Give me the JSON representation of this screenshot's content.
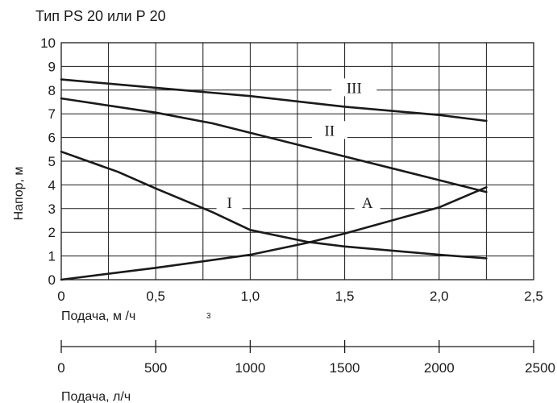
{
  "chart_data": {
    "type": "line",
    "title": "Тип PS 20 или Р 20",
    "ylabel": "Напор, м",
    "xlabel": "Подача, м /ч",
    "xlabel_sup": "3",
    "xlabel2": "Подача, л/ч",
    "xlim": [
      0,
      2.5
    ],
    "ylim": [
      0,
      10
    ],
    "x_ticks": [
      "0",
      "0,5",
      "1,0",
      "1,5",
      "2,0",
      "2,5"
    ],
    "y_ticks": [
      "0",
      "1",
      "2",
      "3",
      "4",
      "5",
      "6",
      "7",
      "8",
      "9",
      "10"
    ],
    "x2_ticks": [
      "0",
      "500",
      "1000",
      "1500",
      "2000",
      "2500"
    ],
    "grid": true,
    "colors": {
      "line": "#1a1a1a",
      "grid": "#1a1a1a"
    },
    "series": [
      {
        "name": "III",
        "label_at": [
          1.55,
          8.05
        ],
        "points": [
          [
            0,
            8.45
          ],
          [
            0.5,
            8.1
          ],
          [
            1.0,
            7.75
          ],
          [
            1.5,
            7.3
          ],
          [
            2.0,
            6.95
          ],
          [
            2.25,
            6.7
          ]
        ]
      },
      {
        "name": "II",
        "label_at": [
          1.42,
          6.25
        ],
        "points": [
          [
            0,
            7.65
          ],
          [
            0.5,
            7.05
          ],
          [
            0.8,
            6.6
          ],
          [
            1.0,
            6.2
          ],
          [
            1.5,
            5.2
          ],
          [
            2.0,
            4.2
          ],
          [
            2.25,
            3.7
          ]
        ]
      },
      {
        "name": "I",
        "label_at": [
          0.89,
          3.2
        ],
        "points": [
          [
            0,
            5.4
          ],
          [
            0.3,
            4.55
          ],
          [
            0.5,
            3.85
          ],
          [
            0.8,
            2.85
          ],
          [
            1.0,
            2.1
          ],
          [
            1.3,
            1.6
          ],
          [
            1.5,
            1.4
          ],
          [
            2.0,
            1.05
          ],
          [
            2.25,
            0.9
          ]
        ]
      },
      {
        "name": "A",
        "label_at": [
          1.62,
          3.2
        ],
        "points": [
          [
            0,
            0
          ],
          [
            0.5,
            0.5
          ],
          [
            1.0,
            1.05
          ],
          [
            1.3,
            1.55
          ],
          [
            1.5,
            1.95
          ],
          [
            2.0,
            3.05
          ],
          [
            2.25,
            3.9
          ]
        ]
      }
    ]
  }
}
